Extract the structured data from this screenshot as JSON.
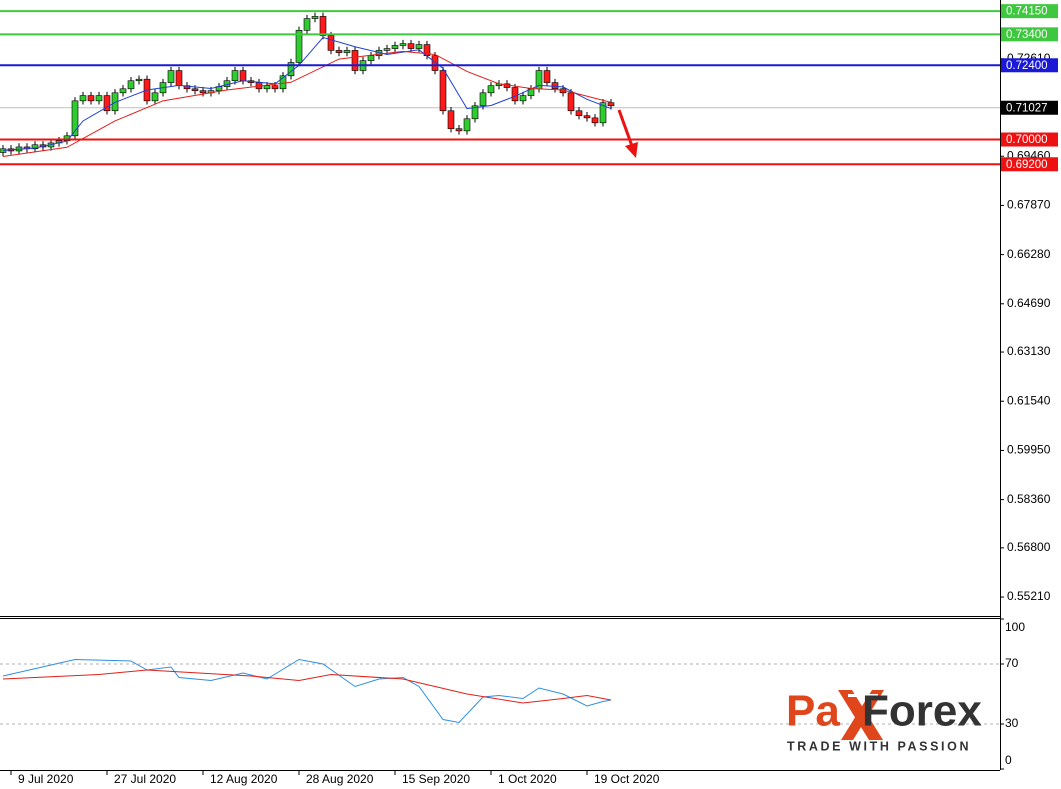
{
  "chart_data": [
    {
      "type": "candlestick",
      "categories": [
        null,
        "9 Jul 2020",
        null,
        null,
        null,
        null,
        null,
        null,
        null,
        null,
        null,
        null,
        null,
        "27 Jul 2020",
        null,
        null,
        null,
        null,
        null,
        null,
        null,
        null,
        null,
        null,
        null,
        "12 Aug 2020",
        null,
        null,
        null,
        null,
        null,
        null,
        null,
        null,
        null,
        null,
        null,
        "28 Aug 2020",
        null,
        null,
        null,
        null,
        null,
        null,
        null,
        null,
        null,
        null,
        null,
        "15 Sep 2020",
        null,
        null,
        null,
        null,
        null,
        null,
        null,
        null,
        null,
        null,
        null,
        "1 Oct 2020",
        null,
        null,
        null,
        null,
        null,
        null,
        null,
        null,
        null,
        null,
        null,
        "19 Oct 2020",
        null,
        null,
        null
      ],
      "open": [
        0.6958,
        0.697,
        0.6963,
        0.6976,
        0.697,
        0.6983,
        0.6976,
        0.6989,
        0.6996,
        0.7012,
        0.7125,
        0.7142,
        0.7125,
        0.7142,
        0.7093,
        0.7151,
        0.7164,
        0.719,
        0.7195,
        0.7125,
        0.7151,
        0.7184,
        0.7223,
        0.7174,
        0.7164,
        0.7158,
        0.7151,
        0.7158,
        0.7171,
        0.719,
        0.7223,
        0.719,
        0.7184,
        0.7164,
        0.7174,
        0.7164,
        0.7206,
        0.7249,
        0.7353,
        0.7391,
        0.7398,
        0.7336,
        0.7288,
        0.7281,
        0.7288,
        0.7223,
        0.7255,
        0.7271,
        0.7288,
        0.7294,
        0.7304,
        0.731,
        0.7294,
        0.7307,
        0.7271,
        0.7223,
        0.7093,
        0.7035,
        0.7028,
        0.7067,
        0.7109,
        0.7151,
        0.7174,
        0.718,
        0.7168,
        0.7125,
        0.7142,
        0.7164,
        0.7223,
        0.7184,
        0.7164,
        0.7151,
        0.7093,
        0.7077,
        0.707,
        0.7054,
        0.7119
      ],
      "high": [
        0.6982,
        0.6982,
        0.6988,
        0.6988,
        0.6995,
        0.6995,
        0.7001,
        0.7008,
        0.7024,
        0.7137,
        0.7154,
        0.7154,
        0.7154,
        0.7154,
        0.7163,
        0.7176,
        0.7202,
        0.7207,
        0.7207,
        0.7163,
        0.7196,
        0.7235,
        0.7235,
        0.7186,
        0.7176,
        0.717,
        0.717,
        0.7183,
        0.7202,
        0.7235,
        0.7235,
        0.7202,
        0.7196,
        0.7186,
        0.7186,
        0.7218,
        0.7261,
        0.7365,
        0.7403,
        0.741,
        0.741,
        0.7348,
        0.73,
        0.73,
        0.73,
        0.7267,
        0.7283,
        0.73,
        0.7306,
        0.7316,
        0.7322,
        0.7322,
        0.7319,
        0.7319,
        0.7283,
        0.7235,
        0.7105,
        0.7047,
        0.7079,
        0.7121,
        0.7163,
        0.7186,
        0.7192,
        0.7192,
        0.718,
        0.7154,
        0.7176,
        0.7235,
        0.7235,
        0.7196,
        0.7176,
        0.7163,
        0.7105,
        0.7089,
        0.7082,
        0.7131,
        0.7131
      ],
      "low": [
        0.6946,
        0.6951,
        0.6951,
        0.6958,
        0.6958,
        0.6964,
        0.6964,
        0.6977,
        0.6984,
        0.7,
        0.7113,
        0.7113,
        0.7113,
        0.7081,
        0.7081,
        0.7139,
        0.7152,
        0.7178,
        0.7113,
        0.7113,
        0.7139,
        0.7172,
        0.7162,
        0.7152,
        0.7146,
        0.7139,
        0.7139,
        0.7146,
        0.7159,
        0.7178,
        0.7178,
        0.7172,
        0.7152,
        0.7152,
        0.7152,
        0.7152,
        0.7194,
        0.7237,
        0.7341,
        0.7379,
        0.7324,
        0.7276,
        0.7269,
        0.7269,
        0.7211,
        0.7211,
        0.7243,
        0.7259,
        0.7276,
        0.7282,
        0.7292,
        0.7282,
        0.7282,
        0.7259,
        0.7211,
        0.7081,
        0.7023,
        0.7016,
        0.7016,
        0.7055,
        0.7097,
        0.7139,
        0.7162,
        0.7156,
        0.7113,
        0.7113,
        0.713,
        0.7152,
        0.7172,
        0.7152,
        0.7139,
        0.7081,
        0.7065,
        0.7058,
        0.7042,
        0.7042,
        0.7097
      ],
      "close": [
        0.697,
        0.6963,
        0.6976,
        0.697,
        0.6983,
        0.6976,
        0.6989,
        0.6996,
        0.7012,
        0.7125,
        0.7142,
        0.7125,
        0.7142,
        0.7093,
        0.7151,
        0.7164,
        0.719,
        0.7195,
        0.7125,
        0.7151,
        0.7184,
        0.7223,
        0.7174,
        0.7164,
        0.7158,
        0.7151,
        0.7158,
        0.7171,
        0.719,
        0.7223,
        0.719,
        0.7184,
        0.7164,
        0.7174,
        0.7164,
        0.7206,
        0.7249,
        0.7353,
        0.7391,
        0.7398,
        0.7336,
        0.7288,
        0.7281,
        0.7288,
        0.7223,
        0.7255,
        0.7271,
        0.7288,
        0.7294,
        0.7304,
        0.731,
        0.7294,
        0.7307,
        0.7271,
        0.7223,
        0.7093,
        0.7035,
        0.7028,
        0.7067,
        0.7109,
        0.7151,
        0.7174,
        0.718,
        0.7168,
        0.7125,
        0.7142,
        0.7164,
        0.7223,
        0.7184,
        0.7164,
        0.7151,
        0.7093,
        0.7077,
        0.707,
        0.7054,
        0.7119,
        0.7109
      ],
      "bull_color": "#2fcc2f",
      "bear_color": "#ff1a1a",
      "series": [
        {
          "color": "#1f3fd6",
          "x": [
            0,
            4,
            8,
            10,
            14,
            18,
            22,
            26,
            30,
            34,
            37,
            40,
            44,
            48,
            52,
            55,
            58,
            61,
            64,
            67,
            70,
            73,
            76
          ],
          "values": [
            0.6965,
            0.6972,
            0.6995,
            0.706,
            0.712,
            0.716,
            0.7175,
            0.7165,
            0.719,
            0.718,
            0.724,
            0.733,
            0.73,
            0.7275,
            0.729,
            0.723,
            0.71,
            0.711,
            0.714,
            0.7175,
            0.717,
            0.713,
            0.71
          ]
        },
        {
          "color": "#e0201a",
          "x": [
            0,
            8,
            14,
            20,
            28,
            36,
            42,
            50,
            54,
            58,
            62,
            66,
            70,
            76
          ],
          "values": [
            0.6945,
            0.6975,
            0.706,
            0.7125,
            0.716,
            0.7185,
            0.726,
            0.7285,
            0.7275,
            0.722,
            0.718,
            0.7165,
            0.716,
            0.712
          ]
        }
      ],
      "levels": [
        {
          "value": 0.7415,
          "label": "0.74150",
          "color": "#3fc83f"
        },
        {
          "value": 0.734,
          "label": "0.73400",
          "color": "#3fc83f"
        },
        {
          "value": 0.724,
          "label": "0.72400",
          "color": "#1a1ad6"
        },
        {
          "value": 0.7,
          "label": "0.70000",
          "color": "#ee1111"
        },
        {
          "value": 0.692,
          "label": "0.69200",
          "color": "#ee1111"
        }
      ],
      "current_price": 0.71027,
      "ylim": [
        0.5463,
        0.7451
      ],
      "yticks": [
        {
          "value": 0.7261,
          "label": "0.72610"
        },
        {
          "value": 0.6946,
          "label": "0.69460"
        },
        {
          "value": 0.6787,
          "label": "0.67870"
        },
        {
          "value": 0.6628,
          "label": "0.66280"
        },
        {
          "value": 0.6469,
          "label": "0.64690"
        },
        {
          "value": 0.6313,
          "label": "0.63130"
        },
        {
          "value": 0.6154,
          "label": "0.61540"
        },
        {
          "value": 0.5995,
          "label": "0.59950"
        },
        {
          "value": 0.5836,
          "label": "0.58360"
        },
        {
          "value": 0.568,
          "label": "0.56800"
        },
        {
          "value": 0.5521,
          "label": "0.55210"
        }
      ]
    },
    {
      "type": "line",
      "series": [
        {
          "color": "#2e8fe0",
          "x": [
            0,
            9,
            16,
            18,
            21,
            22,
            26,
            30,
            33,
            37,
            40,
            44,
            47,
            50,
            52,
            55,
            57,
            60,
            62,
            65,
            67,
            70,
            73,
            75,
            76
          ],
          "values": [
            62,
            73,
            72,
            66,
            68,
            61,
            59,
            64,
            60,
            73,
            70,
            55,
            60,
            61,
            55,
            33,
            31,
            48,
            49,
            47,
            54,
            50,
            42,
            45,
            46
          ]
        },
        {
          "color": "#e0201a",
          "x": [
            0,
            12,
            18,
            31,
            37,
            41,
            50,
            58,
            65,
            70,
            73,
            76
          ],
          "values": [
            60,
            63,
            66,
            62,
            59,
            63,
            60,
            50,
            44,
            47,
            49,
            46
          ]
        }
      ],
      "reference_lines": [
        70,
        30
      ],
      "ylim": [
        0,
        100
      ],
      "yticks": [
        100,
        70,
        30,
        0
      ]
    }
  ],
  "logo": {
    "left": "Pa",
    "right": "Forex",
    "tagline": "TRADE WITH PASSION"
  }
}
